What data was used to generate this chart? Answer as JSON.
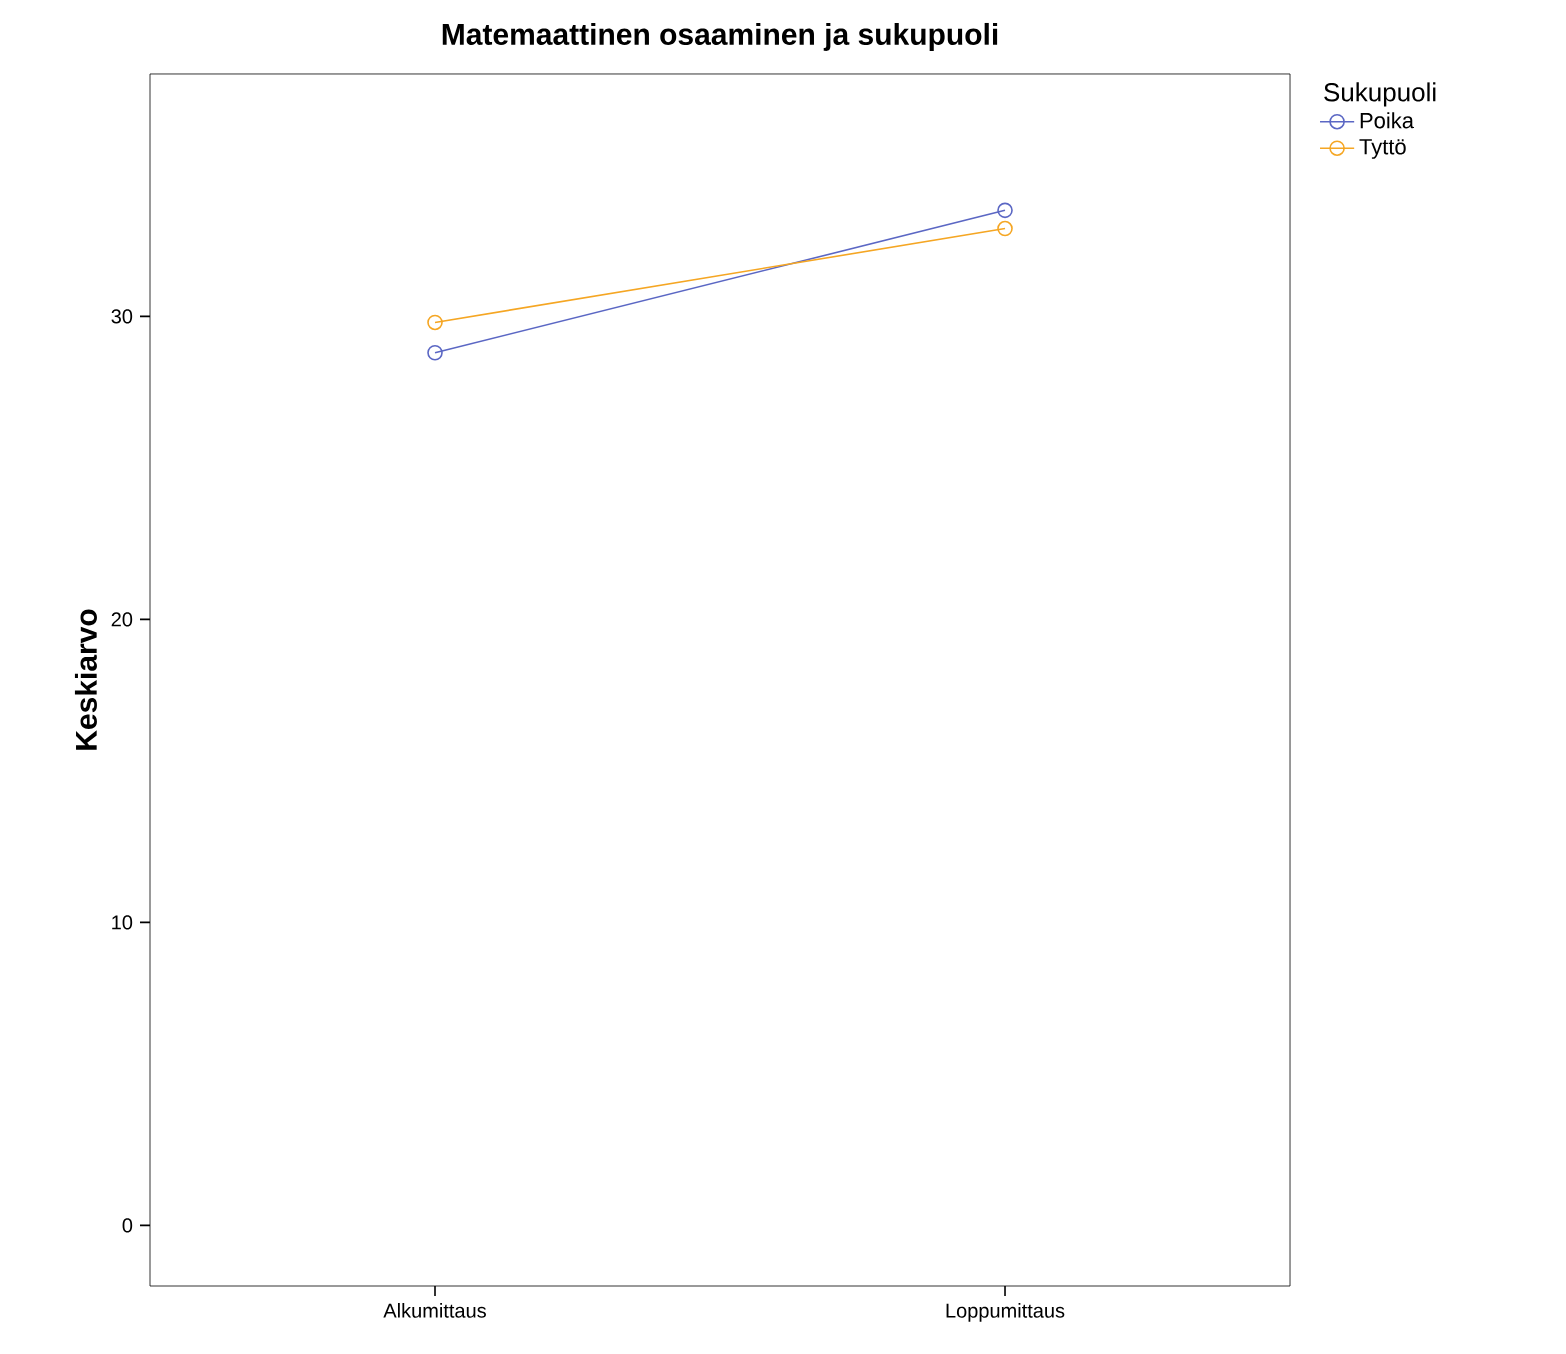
{
  "chart_data": {
    "type": "line",
    "title": "Matemaattinen osaaminen ja sukupuoli",
    "ylabel": "Keskiarvo",
    "legend_title": "Sukupuoli",
    "categories": [
      "Alkumittaus",
      "Loppumittaus"
    ],
    "series": [
      {
        "name": "Poika",
        "color": "#5b67c4",
        "values": [
          28.8,
          33.5
        ]
      },
      {
        "name": "Tyttö",
        "color": "#f5a623",
        "values": [
          29.8,
          32.9
        ]
      }
    ],
    "ylim": [
      -2,
      38
    ],
    "yticks": [
      0,
      10,
      20,
      30
    ],
    "grid": false,
    "legend": "right",
    "marker": "circle",
    "line_style": "solid"
  }
}
